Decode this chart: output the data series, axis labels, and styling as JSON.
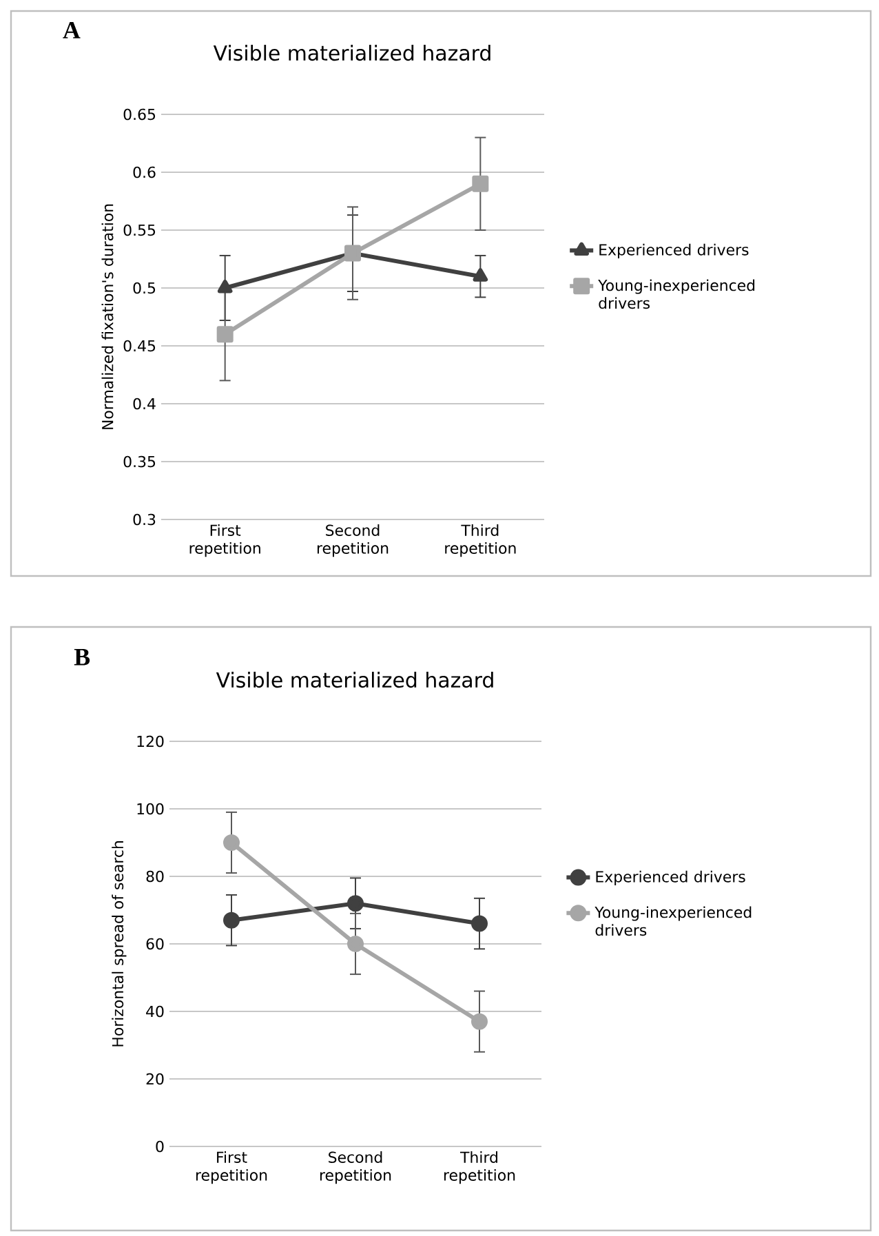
{
  "chart_data": [
    {
      "type": "line",
      "title": "Visible materialized hazard",
      "ylabel": "Normalized fixation's duration",
      "annotations": [
        "A"
      ],
      "categories": [
        "First repetition",
        "Second repetition",
        "Third repetition"
      ],
      "series": [
        {
          "name": "Experienced drivers",
          "color": "#404040",
          "marker": "triangle",
          "values": [
            0.5,
            0.53,
            0.51
          ],
          "errors": [
            0.028,
            0.033,
            0.018
          ]
        },
        {
          "name": "Young-inexperienced drivers",
          "color": "#a6a6a6",
          "marker": "square",
          "values": [
            0.46,
            0.53,
            0.59
          ],
          "errors": [
            0.04,
            0.04,
            0.04
          ]
        }
      ],
      "ylim": [
        0.3,
        0.65
      ],
      "yticks": [
        0.3,
        0.35,
        0.4,
        0.45,
        0.5,
        0.55,
        0.6,
        0.65
      ],
      "grid": "y",
      "legend": "right",
      "line_style": "solid"
    },
    {
      "type": "line",
      "title": "Visible materialized hazard",
      "ylabel": "Horizontal spread of search",
      "annotations": [
        "B"
      ],
      "categories": [
        "First repetition",
        "Second repetition",
        "Third repetition"
      ],
      "series": [
        {
          "name": "Experienced drivers",
          "color": "#404040",
          "marker": "circle",
          "values": [
            67,
            72,
            66
          ],
          "errors": [
            7.5,
            7.5,
            7.5
          ]
        },
        {
          "name": "Young-inexperienced drivers",
          "color": "#a6a6a6",
          "marker": "circle",
          "values": [
            90,
            60,
            37
          ],
          "errors": [
            9,
            9,
            9
          ]
        }
      ],
      "ylim": [
        0,
        120
      ],
      "yticks": [
        0,
        20,
        40,
        60,
        80,
        100,
        120
      ],
      "grid": "y",
      "legend": "right",
      "line_style": "solid"
    }
  ]
}
